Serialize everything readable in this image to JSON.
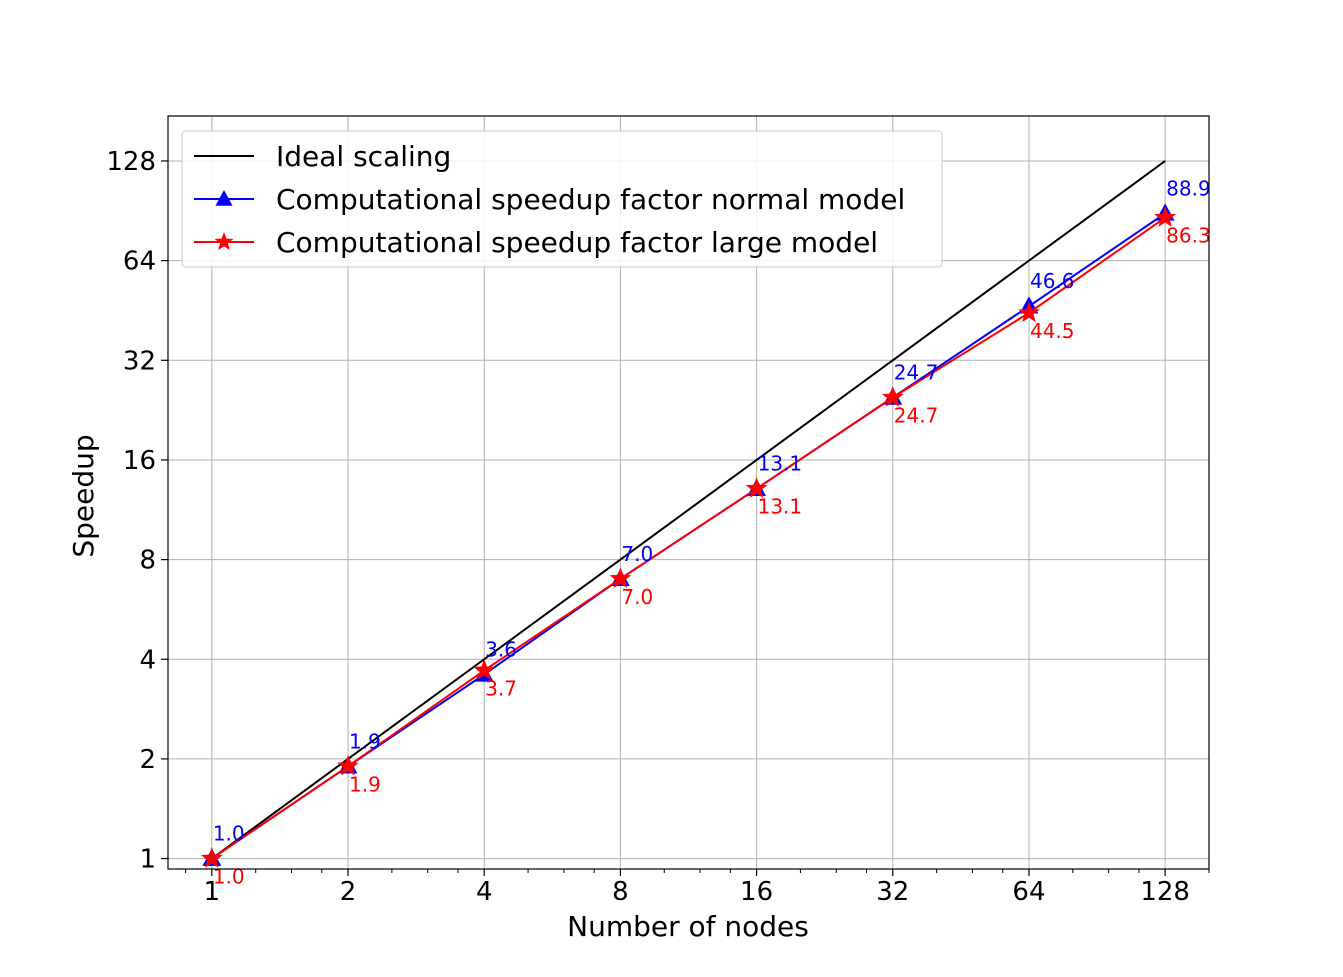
{
  "chart_data": {
    "type": "line",
    "xlabel": "Number of nodes",
    "ylabel": "Speedup",
    "x_scale": "log2",
    "y_scale": "log2",
    "x": [
      1,
      2,
      4,
      8,
      16,
      32,
      64,
      128
    ],
    "x_tick_labels": [
      "1",
      "2",
      "4",
      "8",
      "16",
      "32",
      "64",
      "128"
    ],
    "y_ticks": [
      1,
      2,
      4,
      8,
      16,
      32,
      64,
      128
    ],
    "y_tick_labels": [
      "1",
      "2",
      "4",
      "8",
      "16",
      "32",
      "64",
      "128"
    ],
    "xlim": [
      0.8,
      160
    ],
    "ylim": [
      0.93,
      175
    ],
    "grid": true,
    "legend_position": "top-left",
    "series": [
      {
        "name": "Ideal scaling",
        "color": "#000000",
        "marker": "none",
        "values": [
          1,
          2,
          4,
          8,
          16,
          32,
          64,
          128
        ],
        "labels": []
      },
      {
        "name": "Computational speedup factor normal model",
        "color": "#0000ff",
        "marker": "triangle",
        "values": [
          1.0,
          1.9,
          3.6,
          7.0,
          13.1,
          24.7,
          46.6,
          88.9
        ],
        "labels": [
          "1.0",
          "1.9",
          "3.6",
          "7.0",
          "13.1",
          "24.7",
          "46.6",
          "88.9"
        ],
        "label_position": "above"
      },
      {
        "name": "Computational speedup factor large model",
        "color": "#ff0000",
        "marker": "star",
        "values": [
          1.0,
          1.9,
          3.7,
          7.0,
          13.1,
          24.7,
          44.5,
          86.3
        ],
        "labels": [
          "1.0",
          "1.9",
          "3.7",
          "7.0",
          "13.1",
          "24.7",
          "44.5",
          "86.3"
        ],
        "label_position": "below"
      }
    ]
  }
}
